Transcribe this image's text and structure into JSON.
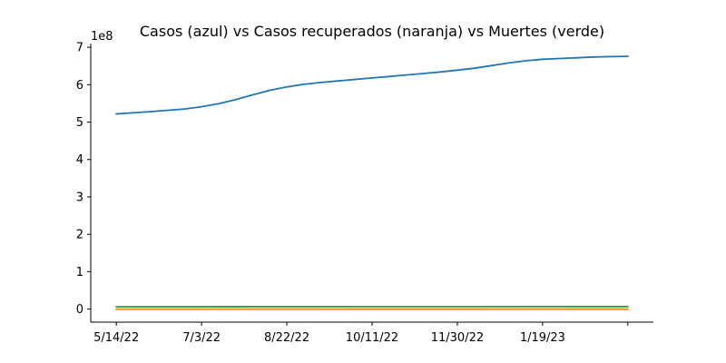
{
  "chart_data": {
    "type": "line",
    "title": "Casos (azul) vs Casos recuperados (naranja) vs Muertes (verde)",
    "xlabel": "",
    "ylabel": "",
    "y_offset_label": "1e8",
    "y_multiplier": 100000000,
    "ylim": [
      -0.35,
      7.1
    ],
    "yticks": [
      0,
      1,
      2,
      3,
      4,
      5,
      6,
      7
    ],
    "x_tick_labels": [
      "5/14/22",
      "7/3/22",
      "8/22/22",
      "10/11/22",
      "11/30/22",
      "1/19/23",
      ""
    ],
    "x_tick_positions": [
      0,
      50,
      100,
      150,
      200,
      250,
      300
    ],
    "xlim": [
      -15,
      315
    ],
    "grid": false,
    "legend": "none",
    "series": [
      {
        "color": "#1f77b4",
        "x": [
          0,
          20,
          40,
          50,
          60,
          70,
          80,
          90,
          100,
          110,
          120,
          130,
          150,
          160,
          170,
          180,
          190,
          200,
          210,
          220,
          230,
          240,
          250,
          260,
          270,
          280,
          290,
          300
        ],
        "values": [
          5.22,
          5.28,
          5.35,
          5.41,
          5.49,
          5.6,
          5.73,
          5.85,
          5.94,
          6.01,
          6.06,
          6.1,
          6.18,
          6.22,
          6.26,
          6.3,
          6.34,
          6.39,
          6.44,
          6.51,
          6.58,
          6.64,
          6.68,
          6.7,
          6.72,
          6.74,
          6.75,
          6.76
        ]
      },
      {
        "color": "#ff7f0e",
        "x": [
          0,
          300
        ],
        "values": [
          0.0,
          0.0
        ]
      },
      {
        "color": "#2ca02c",
        "x": [
          0,
          300
        ],
        "values": [
          0.063,
          0.068
        ]
      }
    ]
  }
}
